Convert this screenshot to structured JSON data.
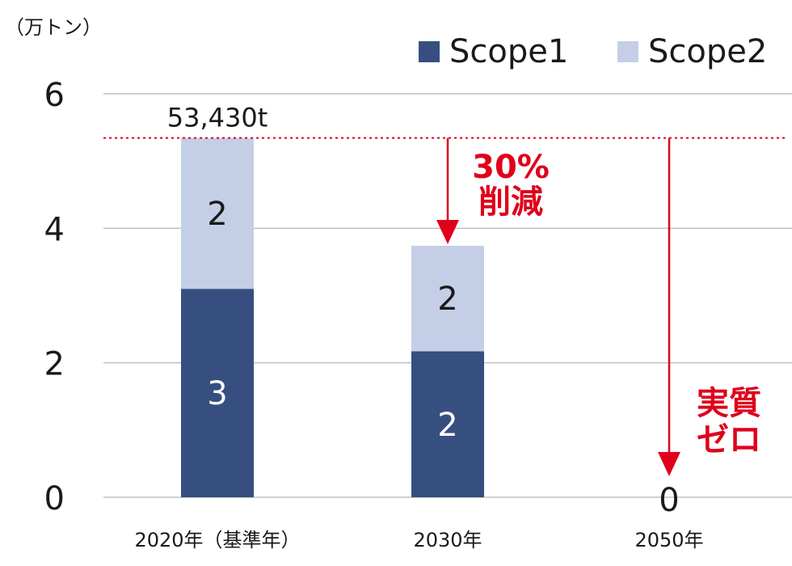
{
  "chart_data": {
    "type": "bar",
    "stacked": true,
    "unit_label": "（万トン）",
    "categories": [
      "2020年（基準年）",
      "2030年",
      "2050年"
    ],
    "series": [
      {
        "name": "Scope1",
        "values": [
          3.1,
          2.17,
          0
        ],
        "labels": [
          "3",
          "2",
          ""
        ],
        "color": "#374f80"
      },
      {
        "name": "Scope2",
        "values": [
          2.243,
          1.57,
          0
        ],
        "labels": [
          "2",
          "2",
          ""
        ],
        "color": "#c4cee6"
      }
    ],
    "y_ticks": [
      "0",
      "2",
      "4",
      "6"
    ],
    "ylim": [
      0,
      6
    ],
    "grid": true,
    "legend_position": "top-right",
    "total_label": "53,430t",
    "baseline_value": 5.343,
    "zero_label": "0",
    "annotations": [
      {
        "text_line1": "30%",
        "text_line2": "削減",
        "color": "#e0001b"
      },
      {
        "text_line1": "実質",
        "text_line2": "ゼロ",
        "color": "#e0001b"
      }
    ],
    "reference_line_color": "#e0001b",
    "grid_color": "#bfbfbf"
  }
}
